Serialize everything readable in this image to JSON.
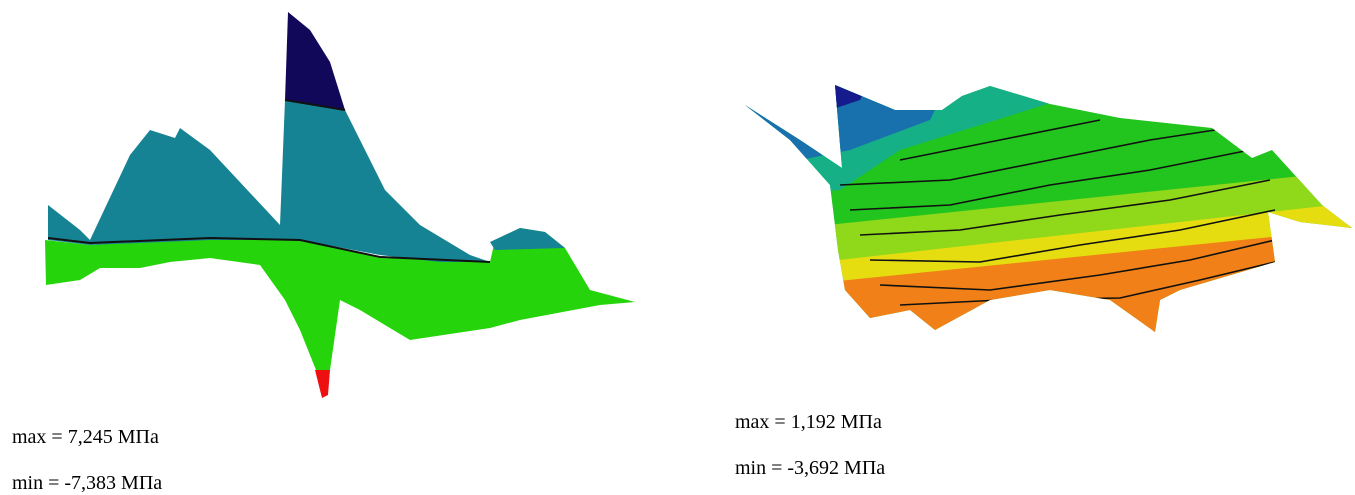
{
  "panels": [
    {
      "max": "max = 7,245 МПа",
      "min": "min = -7,383 МПа"
    },
    {
      "max": "max = 1,192 МПа",
      "min": "min = -3,692 МПа"
    }
  ]
}
